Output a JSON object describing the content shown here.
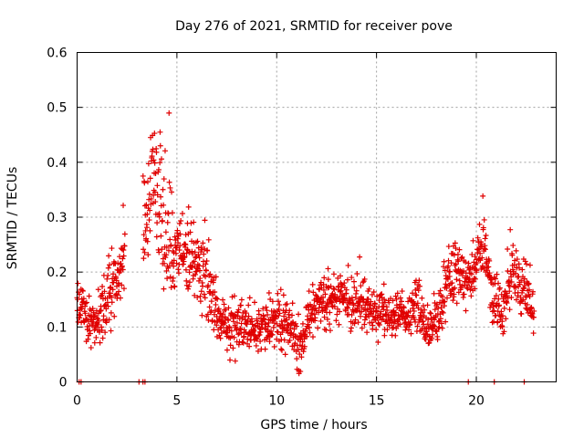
{
  "chart_data": {
    "type": "scatter",
    "title": "Day 276 of 2021, SRMTID for receiver pove",
    "xlabel": "GPS time / hours",
    "ylabel": "SRMTID / TECUs",
    "xlim": [
      0,
      24
    ],
    "ylim": [
      0,
      0.6
    ],
    "xticks": [
      0,
      5,
      10,
      15,
      20
    ],
    "xtick_labels": [
      "0",
      "5",
      "10",
      "15",
      "20"
    ],
    "yticks": [
      0,
      0.1,
      0.2,
      0.3,
      0.4,
      0.5,
      0.6
    ],
    "ytick_labels": [
      "0",
      "0.1",
      "0.2",
      "0.3",
      "0.4",
      "0.5",
      "0.6"
    ],
    "grid": true,
    "marker": "+",
    "color": "#e00000",
    "envelope": [
      {
        "x": 0.0,
        "y": 0.14,
        "spread": 0.06
      },
      {
        "x": 0.5,
        "y": 0.11,
        "spread": 0.05
      },
      {
        "x": 1.0,
        "y": 0.11,
        "spread": 0.05
      },
      {
        "x": 1.5,
        "y": 0.14,
        "spread": 0.05
      },
      {
        "x": 2.0,
        "y": 0.19,
        "spread": 0.07
      },
      {
        "x": 2.3,
        "y": 0.22,
        "spread": 0.06
      },
      {
        "x": 3.4,
        "y": 0.3,
        "spread": 0.1
      },
      {
        "x": 3.8,
        "y": 0.38,
        "spread": 0.13
      },
      {
        "x": 4.3,
        "y": 0.3,
        "spread": 0.12
      },
      {
        "x": 4.8,
        "y": 0.24,
        "spread": 0.1
      },
      {
        "x": 5.3,
        "y": 0.24,
        "spread": 0.09
      },
      {
        "x": 5.8,
        "y": 0.22,
        "spread": 0.08
      },
      {
        "x": 6.3,
        "y": 0.2,
        "spread": 0.1
      },
      {
        "x": 6.8,
        "y": 0.15,
        "spread": 0.06
      },
      {
        "x": 7.3,
        "y": 0.1,
        "spread": 0.04
      },
      {
        "x": 8.0,
        "y": 0.1,
        "spread": 0.05
      },
      {
        "x": 9.0,
        "y": 0.1,
        "spread": 0.05
      },
      {
        "x": 10.0,
        "y": 0.11,
        "spread": 0.05
      },
      {
        "x": 10.8,
        "y": 0.1,
        "spread": 0.05
      },
      {
        "x": 11.2,
        "y": 0.06,
        "spread": 0.05
      },
      {
        "x": 11.6,
        "y": 0.12,
        "spread": 0.05
      },
      {
        "x": 12.5,
        "y": 0.15,
        "spread": 0.05
      },
      {
        "x": 13.5,
        "y": 0.15,
        "spread": 0.05
      },
      {
        "x": 14.5,
        "y": 0.14,
        "spread": 0.05
      },
      {
        "x": 15.5,
        "y": 0.12,
        "spread": 0.04
      },
      {
        "x": 16.5,
        "y": 0.12,
        "spread": 0.04
      },
      {
        "x": 17.0,
        "y": 0.14,
        "spread": 0.06
      },
      {
        "x": 17.5,
        "y": 0.1,
        "spread": 0.04
      },
      {
        "x": 18.0,
        "y": 0.1,
        "spread": 0.04
      },
      {
        "x": 18.5,
        "y": 0.17,
        "spread": 0.06
      },
      {
        "x": 19.0,
        "y": 0.2,
        "spread": 0.06
      },
      {
        "x": 19.5,
        "y": 0.18,
        "spread": 0.05
      },
      {
        "x": 20.0,
        "y": 0.22,
        "spread": 0.06
      },
      {
        "x": 20.3,
        "y": 0.26,
        "spread": 0.06
      },
      {
        "x": 20.8,
        "y": 0.16,
        "spread": 0.06
      },
      {
        "x": 21.3,
        "y": 0.13,
        "spread": 0.05
      },
      {
        "x": 21.8,
        "y": 0.2,
        "spread": 0.06
      },
      {
        "x": 22.3,
        "y": 0.18,
        "spread": 0.06
      },
      {
        "x": 22.8,
        "y": 0.14,
        "spread": 0.06
      }
    ],
    "zero_points": [
      0.1,
      0.2,
      3.1,
      3.3,
      3.4,
      19.6,
      20.9,
      22.4
    ]
  }
}
